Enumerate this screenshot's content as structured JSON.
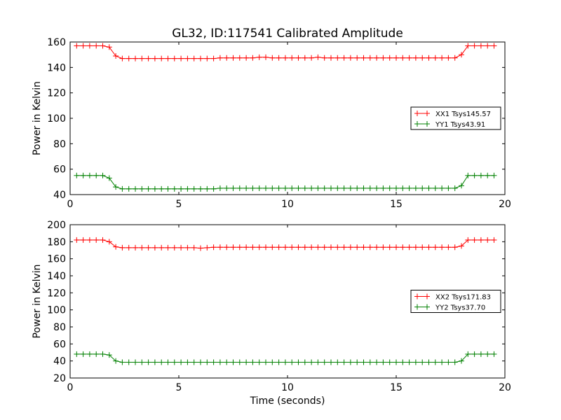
{
  "figure": {
    "title": "GL32, ID:117541 Calibrated Amplitude",
    "xlabel": "Time (seconds)"
  },
  "colors": {
    "red": "#ff0000",
    "green": "#008000",
    "black": "#000000"
  },
  "chart_data": [
    {
      "type": "line",
      "title": "GL32, ID:117541 Calibrated Amplitude",
      "xlabel": "",
      "ylabel": "Power in Kelvin",
      "xlim": [
        0,
        20
      ],
      "ylim": [
        40,
        160
      ],
      "xticks": [
        "0",
        "5",
        "10",
        "15",
        "20"
      ],
      "yticks": [
        "40",
        "60",
        "80",
        "100",
        "120",
        "140",
        "160"
      ],
      "grid": false,
      "legend_position": "center-right",
      "x": [
        0.3,
        0.6,
        0.9,
        1.2,
        1.5,
        1.8,
        2.1,
        2.4,
        2.7,
        3.0,
        3.3,
        3.6,
        3.9,
        4.2,
        4.5,
        4.8,
        5.1,
        5.4,
        5.7,
        6.0,
        6.3,
        6.6,
        6.9,
        7.2,
        7.5,
        7.8,
        8.1,
        8.4,
        8.7,
        9.0,
        9.3,
        9.6,
        9.9,
        10.2,
        10.5,
        10.8,
        11.1,
        11.4,
        11.7,
        12.0,
        12.3,
        12.6,
        12.9,
        13.2,
        13.5,
        13.8,
        14.1,
        14.4,
        14.7,
        15.0,
        15.3,
        15.6,
        15.9,
        16.2,
        16.5,
        16.8,
        17.1,
        17.4,
        17.7,
        18.0,
        18.3,
        18.6,
        18.9,
        19.2,
        19.5
      ],
      "series": [
        {
          "name": "XX1 Tsys145.57",
          "color": "#ff0000",
          "values": [
            157,
            157,
            157,
            157,
            157,
            156,
            149,
            147,
            147,
            147,
            147,
            147,
            147,
            147,
            147,
            147,
            147,
            147,
            147,
            147,
            147,
            147,
            147.5,
            147.5,
            147.5,
            147.5,
            147.5,
            147.5,
            148,
            148,
            147.5,
            147.5,
            147.5,
            147.5,
            147.5,
            147.5,
            147.5,
            148,
            147.5,
            147.5,
            147.5,
            147.5,
            147.5,
            147.5,
            147.5,
            147.5,
            147.5,
            147.5,
            147.5,
            147.5,
            147.5,
            147.5,
            147.5,
            147.5,
            147.5,
            147.5,
            147.5,
            147.5,
            147.5,
            150,
            157,
            157,
            157,
            157,
            157
          ]
        },
        {
          "name": "YY1 Tsys43.91",
          "color": "#008000",
          "values": [
            55,
            55,
            55,
            55,
            55,
            53,
            46,
            44.5,
            44.5,
            44.5,
            44.5,
            44.5,
            44.5,
            44.5,
            44.5,
            44.5,
            44.5,
            44.5,
            44.5,
            44.5,
            44.5,
            44.5,
            45,
            45,
            45,
            45,
            45,
            45,
            45,
            45,
            45,
            45,
            45,
            45,
            45,
            45,
            45,
            45,
            45,
            45,
            45,
            45,
            45,
            45,
            45,
            45,
            45,
            45,
            45,
            45,
            45,
            45,
            45,
            45,
            45,
            45,
            45,
            45,
            45,
            47,
            55,
            55,
            55,
            55,
            55
          ]
        }
      ]
    },
    {
      "type": "line",
      "title": "",
      "xlabel": "Time (seconds)",
      "ylabel": "Power in Kelvin",
      "xlim": [
        0,
        20
      ],
      "ylim": [
        20,
        200
      ],
      "xticks": [
        "0",
        "5",
        "10",
        "15",
        "20"
      ],
      "yticks": [
        "20",
        "40",
        "60",
        "80",
        "100",
        "120",
        "140",
        "160",
        "180",
        "200"
      ],
      "grid": false,
      "legend_position": "center-right",
      "x": [
        0.3,
        0.6,
        0.9,
        1.2,
        1.5,
        1.8,
        2.1,
        2.4,
        2.7,
        3.0,
        3.3,
        3.6,
        3.9,
        4.2,
        4.5,
        4.8,
        5.1,
        5.4,
        5.7,
        6.0,
        6.3,
        6.6,
        6.9,
        7.2,
        7.5,
        7.8,
        8.1,
        8.4,
        8.7,
        9.0,
        9.3,
        9.6,
        9.9,
        10.2,
        10.5,
        10.8,
        11.1,
        11.4,
        11.7,
        12.0,
        12.3,
        12.6,
        12.9,
        13.2,
        13.5,
        13.8,
        14.1,
        14.4,
        14.7,
        15.0,
        15.3,
        15.6,
        15.9,
        16.2,
        16.5,
        16.8,
        17.1,
        17.4,
        17.7,
        18.0,
        18.3,
        18.6,
        18.9,
        19.2,
        19.5
      ],
      "series": [
        {
          "name": "XX2 Tsys171.83",
          "color": "#ff0000",
          "values": [
            182,
            182,
            182,
            182,
            182,
            180,
            174,
            173,
            173,
            173,
            173,
            173,
            173,
            173,
            173,
            173,
            173,
            173,
            173,
            172.5,
            173,
            173.5,
            173.5,
            173.5,
            173.5,
            173.5,
            173.5,
            173.5,
            173.5,
            173.5,
            173.5,
            173.5,
            173.5,
            173.5,
            173.5,
            173.5,
            173.5,
            173.5,
            173.5,
            173.5,
            173.5,
            173.5,
            173.5,
            173.5,
            173.5,
            173.5,
            173.5,
            173.5,
            173.5,
            173.5,
            173.5,
            173.5,
            173.5,
            173.5,
            173.5,
            173.5,
            173.5,
            173.5,
            173.5,
            175,
            182,
            182,
            182,
            182,
            182
          ]
        },
        {
          "name": "YY2 Tsys37.70",
          "color": "#008000",
          "values": [
            48,
            48,
            48,
            48,
            48,
            47,
            40,
            38.5,
            38.5,
            38.5,
            38.5,
            38.5,
            38.5,
            38.5,
            38.5,
            38.5,
            38.5,
            38.5,
            38.5,
            38.5,
            38.5,
            38.5,
            38.5,
            38.5,
            38.5,
            38.5,
            38.5,
            38.5,
            38.5,
            38.5,
            38.5,
            38.5,
            38.5,
            38.5,
            38.5,
            38.5,
            38.5,
            38.5,
            38.5,
            38.5,
            38.5,
            38.5,
            38.5,
            38.5,
            38.5,
            38.5,
            38.5,
            38.5,
            38.5,
            38.5,
            38.5,
            38.5,
            38.5,
            38.5,
            38.5,
            38.5,
            38.5,
            38.5,
            38.5,
            40,
            48,
            48,
            48,
            48,
            48
          ]
        }
      ]
    }
  ]
}
